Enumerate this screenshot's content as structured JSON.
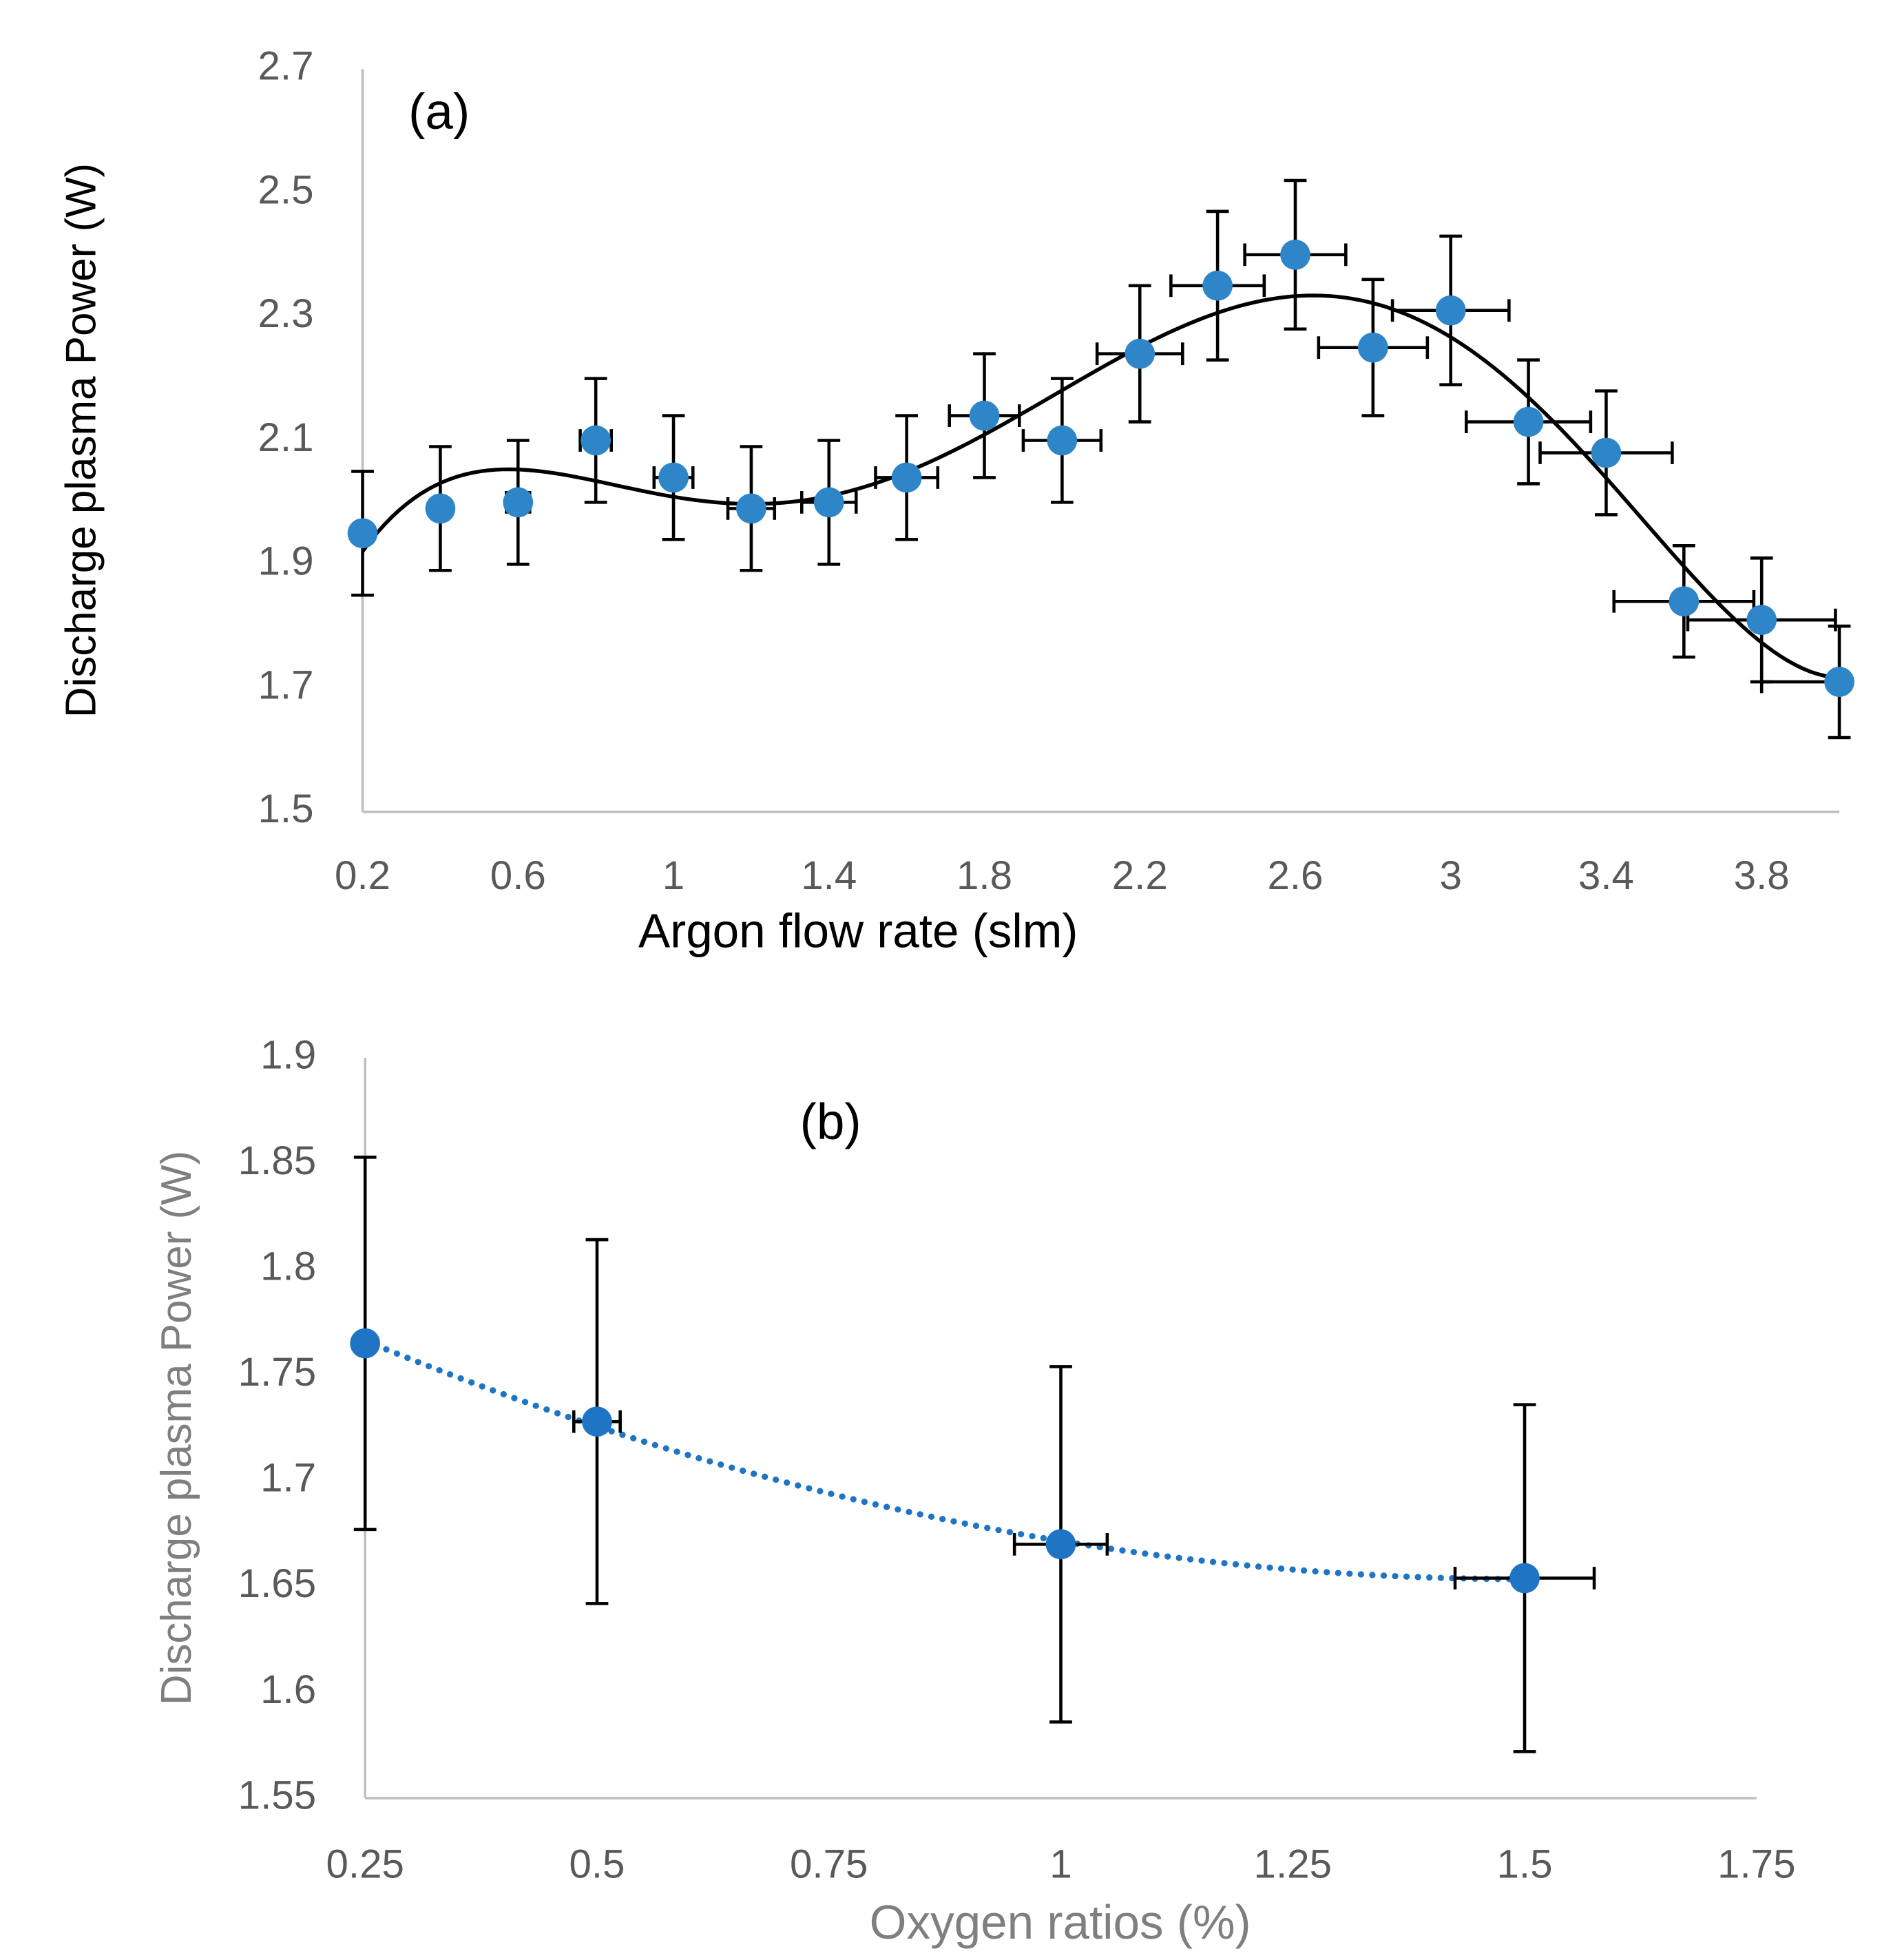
{
  "chart_data": [
    {
      "type": "scatter",
      "annotation": "(a)",
      "x_label": "Argon flow rate (slm)",
      "y_label": "Discharge plasma Power (W)",
      "x": [
        0.2,
        0.4,
        0.6,
        0.8,
        1,
        1.2,
        1.4,
        1.6,
        1.8,
        2,
        2.2,
        2.4,
        2.6,
        2.8,
        3,
        3.2,
        3.4,
        3.6,
        3.8,
        4
      ],
      "values": [
        1.95,
        1.99,
        2.0,
        2.1,
        2.04,
        1.99,
        2.0,
        2.04,
        2.14,
        2.1,
        2.24,
        2.35,
        2.4,
        2.25,
        2.31,
        2.13,
        2.08,
        1.84,
        1.81,
        1.71
      ],
      "y_err": [
        0.1,
        0.1,
        0.1,
        0.1,
        0.1,
        0.1,
        0.1,
        0.1,
        0.1,
        0.1,
        0.11,
        0.12,
        0.12,
        0.11,
        0.12,
        0.1,
        0.1,
        0.09,
        0.1,
        0.09
      ],
      "x_err": [
        0.01,
        0.02,
        0.03,
        0.04,
        0.05,
        0.06,
        0.07,
        0.08,
        0.09,
        0.1,
        0.11,
        0.12,
        0.13,
        0.14,
        0.15,
        0.16,
        0.17,
        0.18,
        0.19,
        0.2
      ],
      "color": "#2e86c9",
      "error_color": "#000000",
      "trendline": {
        "type": "polynomial",
        "order": 5,
        "color": "#000000",
        "style": "solid"
      },
      "xlim": [
        0.2,
        4.0
      ],
      "xticks": [
        0.2,
        0.6,
        1,
        1.4,
        1.8,
        2.2,
        2.6,
        3,
        3.4,
        3.8
      ],
      "ylim": [
        1.5,
        2.7
      ],
      "yticks": [
        1.5,
        1.7,
        1.9,
        2.1,
        2.3,
        2.5,
        2.7
      ]
    },
    {
      "type": "scatter",
      "annotation": "(b)",
      "x_label": "Oxygen ratios (%)",
      "y_label": "Discharge plasma Power (W)",
      "x": [
        0.25,
        0.5,
        1,
        1.5
      ],
      "values": [
        1.765,
        1.728,
        1.67,
        1.654
      ],
      "y_err": [
        0.088,
        0.086,
        0.084,
        0.082
      ],
      "x_err": [
        0,
        0.025,
        0.05,
        0.075
      ],
      "color": "#1f74c4",
      "error_color": "#000000",
      "trendline": {
        "type": "polynomial",
        "order": 2,
        "color": "#1f74c4",
        "style": "dotted"
      },
      "xlim": [
        0.25,
        1.75
      ],
      "xticks": [
        0.25,
        0.5,
        0.75,
        1,
        1.25,
        1.5,
        1.75
      ],
      "ylim": [
        1.55,
        1.9
      ],
      "yticks": [
        1.55,
        1.6,
        1.65,
        1.7,
        1.75,
        1.8,
        1.85,
        1.9
      ]
    }
  ]
}
